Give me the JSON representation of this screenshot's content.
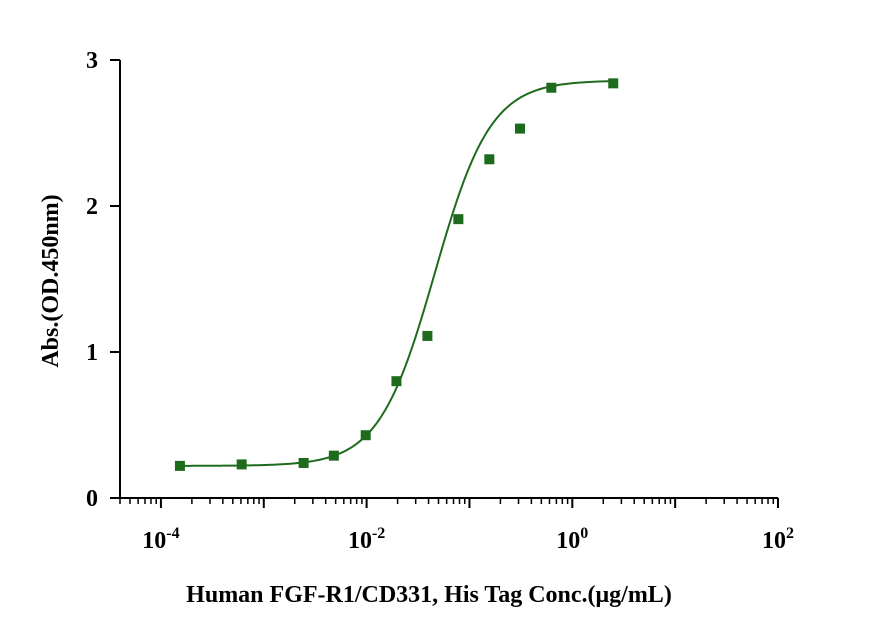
{
  "chart_data": {
    "type": "scatter",
    "title": "",
    "xlabel": "Human FGF-R1/CD331, His Tag Conc.(μg/mL)",
    "ylabel": "Abs.(OD.450nm)",
    "xscale": "log",
    "xlim": [
      4e-05,
      100
    ],
    "ylim": [
      0,
      3
    ],
    "x_ticks": [
      {
        "base": "10",
        "exp": "-4",
        "value": 0.0001
      },
      {
        "base": "10",
        "exp": "-2",
        "value": 0.01
      },
      {
        "base": "10",
        "exp": "0",
        "value": 1
      },
      {
        "base": "10",
        "exp": "2",
        "value": 100
      }
    ],
    "y_ticks": [
      {
        "label": "0",
        "value": 0
      },
      {
        "label": "1",
        "value": 1
      },
      {
        "label": "2",
        "value": 2
      },
      {
        "label": "3",
        "value": 3
      }
    ],
    "grid": false,
    "legend": "none",
    "color": "#1e6b1e",
    "series": [
      {
        "marker": "square",
        "x": [
          0.000153,
          0.00061,
          0.00244,
          0.0048,
          0.0098,
          0.0195,
          0.039,
          0.078,
          0.156,
          0.31,
          0.625,
          2.5
        ],
        "y": [
          0.22,
          0.23,
          0.24,
          0.29,
          0.43,
          0.8,
          1.11,
          1.91,
          2.32,
          2.53,
          2.81,
          2.84
        ]
      }
    ],
    "fit": {
      "model": "4PL",
      "bottom": 0.22,
      "top": 2.86,
      "ec50": 0.046,
      "hill": 1.6,
      "x_range": [
        0.000153,
        2.5
      ]
    }
  }
}
